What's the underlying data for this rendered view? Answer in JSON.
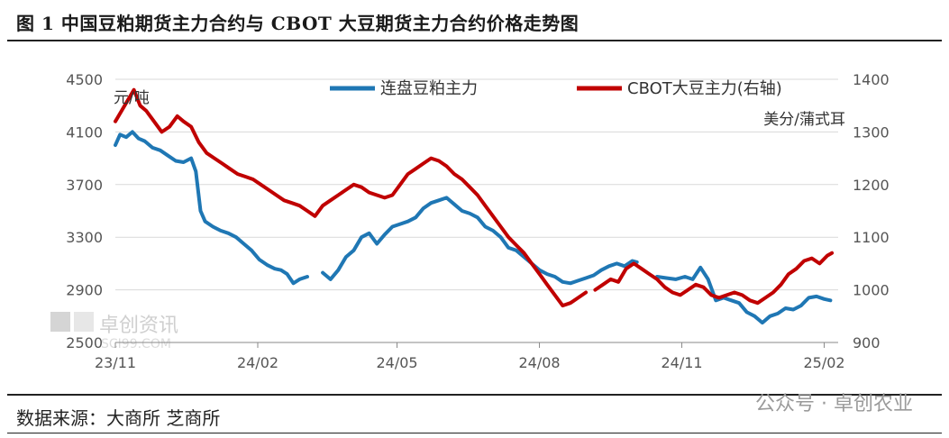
{
  "title": "图 1  中国豆粕期货主力合约与 CBOT 大豆期货主力合约价格走势图",
  "source": "数据来源：大商所  芝商所",
  "watermark_logo": {
    "name": "卓创资讯",
    "url": "SCI99.COM"
  },
  "watermark_bottom": "公众号 · 卓创农业",
  "colors": {
    "dce": "#1f77b4",
    "cbot": "#c00000"
  },
  "chart_data": {
    "type": "line",
    "left_unit": "元/吨",
    "right_unit": "美分/蒲式耳",
    "x_ticks": [
      "23/11",
      "24/02",
      "24/05",
      "24/08",
      "24/11",
      "25/02"
    ],
    "y_left_ticks": [
      2500,
      2900,
      3300,
      3700,
      4100,
      4500
    ],
    "y_right_ticks": [
      900,
      1000,
      1100,
      1200,
      1300,
      1400
    ],
    "ylim_left": [
      2500,
      4500
    ],
    "ylim_right": [
      900,
      1400
    ],
    "xlim": [
      "2023-11-01",
      "2025-02-10"
    ],
    "legend_position": "top",
    "series": [
      {
        "name": "连盘豆粕主力",
        "axis": "left",
        "color": "#1f77b4",
        "points": [
          [
            "2023-11-01",
            4000
          ],
          [
            "2023-11-04",
            4080
          ],
          [
            "2023-11-08",
            4060
          ],
          [
            "2023-11-12",
            4100
          ],
          [
            "2023-11-16",
            4050
          ],
          [
            "2023-11-20",
            4030
          ],
          [
            "2023-11-25",
            3980
          ],
          [
            "2023-11-30",
            3960
          ],
          [
            "2023-12-05",
            3920
          ],
          [
            "2023-12-10",
            3880
          ],
          [
            "2023-12-15",
            3870
          ],
          [
            "2023-12-20",
            3900
          ],
          [
            "2023-12-23",
            3800
          ],
          [
            "2023-12-26",
            3500
          ],
          [
            "2023-12-29",
            3420
          ],
          [
            "2024-01-03",
            3380
          ],
          [
            "2024-01-08",
            3350
          ],
          [
            "2024-01-13",
            3330
          ],
          [
            "2024-01-18",
            3300
          ],
          [
            "2024-01-23",
            3250
          ],
          [
            "2024-01-28",
            3200
          ],
          [
            "2024-02-02",
            3130
          ],
          [
            "2024-02-07",
            3090
          ],
          [
            "2024-02-12",
            3060
          ],
          [
            "2024-02-16",
            3050
          ],
          [
            "2024-02-20",
            3020
          ],
          [
            "2024-02-24",
            2950
          ],
          [
            "2024-02-28",
            2980
          ],
          [
            "2024-03-04",
            3000
          ],
          null,
          [
            "2024-03-14",
            3030
          ],
          [
            "2024-03-19",
            2980
          ],
          [
            "2024-03-24",
            3050
          ],
          [
            "2024-03-29",
            3150
          ],
          [
            "2024-04-03",
            3200
          ],
          [
            "2024-04-08",
            3300
          ],
          [
            "2024-04-13",
            3330
          ],
          [
            "2024-04-18",
            3250
          ],
          [
            "2024-04-23",
            3320
          ],
          [
            "2024-04-28",
            3380
          ],
          [
            "2024-05-03",
            3400
          ],
          [
            "2024-05-08",
            3420
          ],
          [
            "2024-05-13",
            3450
          ],
          [
            "2024-05-18",
            3520
          ],
          [
            "2024-05-23",
            3560
          ],
          [
            "2024-05-28",
            3580
          ],
          [
            "2024-06-02",
            3600
          ],
          [
            "2024-06-07",
            3550
          ],
          [
            "2024-06-12",
            3500
          ],
          [
            "2024-06-17",
            3480
          ],
          [
            "2024-06-22",
            3450
          ],
          [
            "2024-06-27",
            3380
          ],
          [
            "2024-07-02",
            3350
          ],
          [
            "2024-07-07",
            3300
          ],
          [
            "2024-07-12",
            3220
          ],
          [
            "2024-07-17",
            3200
          ],
          [
            "2024-07-22",
            3150
          ],
          [
            "2024-07-27",
            3100
          ],
          [
            "2024-08-01",
            3050
          ],
          [
            "2024-08-06",
            3020
          ],
          [
            "2024-08-11",
            3000
          ],
          [
            "2024-08-16",
            2960
          ],
          [
            "2024-08-21",
            2950
          ],
          [
            "2024-08-26",
            2970
          ],
          [
            "2024-08-31",
            2990
          ],
          [
            "2024-09-05",
            3010
          ],
          [
            "2024-09-10",
            3050
          ],
          [
            "2024-09-15",
            3080
          ],
          [
            "2024-09-20",
            3100
          ],
          [
            "2024-09-25",
            3080
          ],
          [
            "2024-09-30",
            3120
          ],
          [
            "2024-10-03",
            3110
          ],
          null,
          [
            "2024-10-16",
            3000
          ],
          [
            "2024-10-22",
            2990
          ],
          [
            "2024-10-28",
            2980
          ],
          [
            "2024-11-03",
            3000
          ],
          [
            "2024-11-08",
            2980
          ],
          [
            "2024-11-13",
            3070
          ],
          [
            "2024-11-18",
            2980
          ],
          [
            "2024-11-23",
            2820
          ],
          [
            "2024-11-28",
            2840
          ],
          [
            "2024-12-03",
            2820
          ],
          [
            "2024-12-08",
            2800
          ],
          [
            "2024-12-13",
            2730
          ],
          [
            "2024-12-18",
            2700
          ],
          [
            "2024-12-23",
            2650
          ],
          [
            "2024-12-28",
            2700
          ],
          [
            "2025-01-02",
            2720
          ],
          [
            "2025-01-07",
            2760
          ],
          [
            "2025-01-12",
            2750
          ],
          [
            "2025-01-17",
            2780
          ],
          [
            "2025-01-22",
            2840
          ],
          [
            "2025-01-27",
            2850
          ],
          [
            "2025-02-01",
            2830
          ],
          [
            "2025-02-05",
            2820
          ]
        ]
      },
      {
        "name": "CBOT大豆主力(右轴)",
        "axis": "right",
        "color": "#c00000",
        "points": [
          [
            "2023-11-01",
            1320
          ],
          [
            "2023-11-05",
            1340
          ],
          [
            "2023-11-09",
            1360
          ],
          [
            "2023-11-13",
            1380
          ],
          [
            "2023-11-17",
            1350
          ],
          [
            "2023-11-21",
            1340
          ],
          [
            "2023-11-26",
            1320
          ],
          [
            "2023-12-01",
            1300
          ],
          [
            "2023-12-06",
            1310
          ],
          [
            "2023-12-11",
            1330
          ],
          [
            "2023-12-15",
            1320
          ],
          [
            "2023-12-20",
            1310
          ],
          [
            "2023-12-25",
            1280
          ],
          [
            "2023-12-30",
            1260
          ],
          [
            "2024-01-04",
            1250
          ],
          [
            "2024-01-09",
            1240
          ],
          [
            "2024-01-14",
            1230
          ],
          [
            "2024-01-19",
            1220
          ],
          [
            "2024-01-24",
            1215
          ],
          [
            "2024-01-29",
            1210
          ],
          [
            "2024-02-03",
            1200
          ],
          [
            "2024-02-08",
            1190
          ],
          [
            "2024-02-13",
            1180
          ],
          [
            "2024-02-18",
            1170
          ],
          [
            "2024-02-23",
            1165
          ],
          [
            "2024-02-28",
            1160
          ],
          [
            "2024-03-04",
            1150
          ],
          [
            "2024-03-09",
            1140
          ],
          [
            "2024-03-14",
            1160
          ],
          [
            "2024-03-19",
            1170
          ],
          [
            "2024-03-24",
            1180
          ],
          [
            "2024-03-29",
            1190
          ],
          [
            "2024-04-03",
            1200
          ],
          [
            "2024-04-08",
            1195
          ],
          [
            "2024-04-13",
            1185
          ],
          [
            "2024-04-18",
            1180
          ],
          [
            "2024-04-23",
            1175
          ],
          [
            "2024-04-28",
            1180
          ],
          [
            "2024-05-03",
            1200
          ],
          [
            "2024-05-08",
            1220
          ],
          [
            "2024-05-13",
            1230
          ],
          [
            "2024-05-18",
            1240
          ],
          [
            "2024-05-23",
            1250
          ],
          [
            "2024-05-28",
            1245
          ],
          [
            "2024-06-02",
            1235
          ],
          [
            "2024-06-07",
            1220
          ],
          [
            "2024-06-12",
            1210
          ],
          [
            "2024-06-17",
            1195
          ],
          [
            "2024-06-22",
            1180
          ],
          [
            "2024-06-27",
            1160
          ],
          [
            "2024-07-02",
            1140
          ],
          [
            "2024-07-07",
            1120
          ],
          [
            "2024-07-12",
            1100
          ],
          [
            "2024-07-17",
            1085
          ],
          [
            "2024-07-22",
            1070
          ],
          [
            "2024-07-27",
            1050
          ],
          [
            "2024-08-01",
            1030
          ],
          [
            "2024-08-06",
            1010
          ],
          [
            "2024-08-11",
            990
          ],
          [
            "2024-08-16",
            970
          ],
          [
            "2024-08-21",
            975
          ],
          [
            "2024-08-26",
            985
          ],
          [
            "2024-08-31",
            995
          ],
          null,
          [
            "2024-09-06",
            1000
          ],
          [
            "2024-09-11",
            1010
          ],
          [
            "2024-09-16",
            1020
          ],
          [
            "2024-09-21",
            1015
          ],
          [
            "2024-09-26",
            1040
          ],
          [
            "2024-10-01",
            1050
          ],
          [
            "2024-10-06",
            1040
          ],
          [
            "2024-10-11",
            1030
          ],
          [
            "2024-10-16",
            1020
          ],
          [
            "2024-10-21",
            1005
          ],
          [
            "2024-10-26",
            995
          ],
          [
            "2024-10-31",
            990
          ],
          [
            "2024-11-05",
            1000
          ],
          [
            "2024-11-10",
            1010
          ],
          [
            "2024-11-15",
            1005
          ],
          [
            "2024-11-20",
            990
          ],
          [
            "2024-11-25",
            985
          ],
          [
            "2024-11-30",
            990
          ],
          [
            "2024-12-05",
            995
          ],
          [
            "2024-12-10",
            990
          ],
          [
            "2024-12-15",
            980
          ],
          [
            "2024-12-20",
            975
          ],
          [
            "2024-12-25",
            985
          ],
          [
            "2024-12-30",
            995
          ],
          [
            "2025-01-04",
            1010
          ],
          [
            "2025-01-09",
            1030
          ],
          [
            "2025-01-14",
            1040
          ],
          [
            "2025-01-19",
            1055
          ],
          [
            "2025-01-24",
            1060
          ],
          [
            "2025-01-29",
            1050
          ],
          [
            "2025-02-03",
            1065
          ],
          [
            "2025-02-06",
            1070
          ]
        ]
      }
    ]
  }
}
